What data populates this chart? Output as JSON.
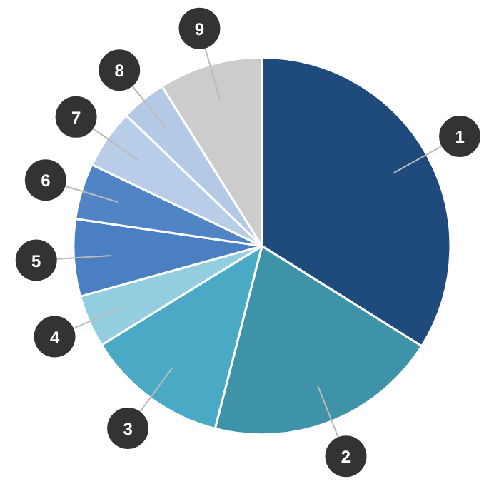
{
  "chart_data": {
    "type": "pie",
    "categories": [
      "1",
      "2",
      "3",
      "4",
      "5",
      "6",
      "7",
      "8",
      "9"
    ],
    "values": [
      33.9,
      20.1,
      12.2,
      4.5,
      6.6,
      4.8,
      5.1,
      3.9,
      8.9
    ],
    "colors": [
      "#1f4a7c",
      "#3f93a8",
      "#4aaac6",
      "#93cde0",
      "#4a7fc1",
      "#5084c4",
      "#b8cde8",
      "#b4c9e6",
      "#cccccc"
    ]
  }
}
